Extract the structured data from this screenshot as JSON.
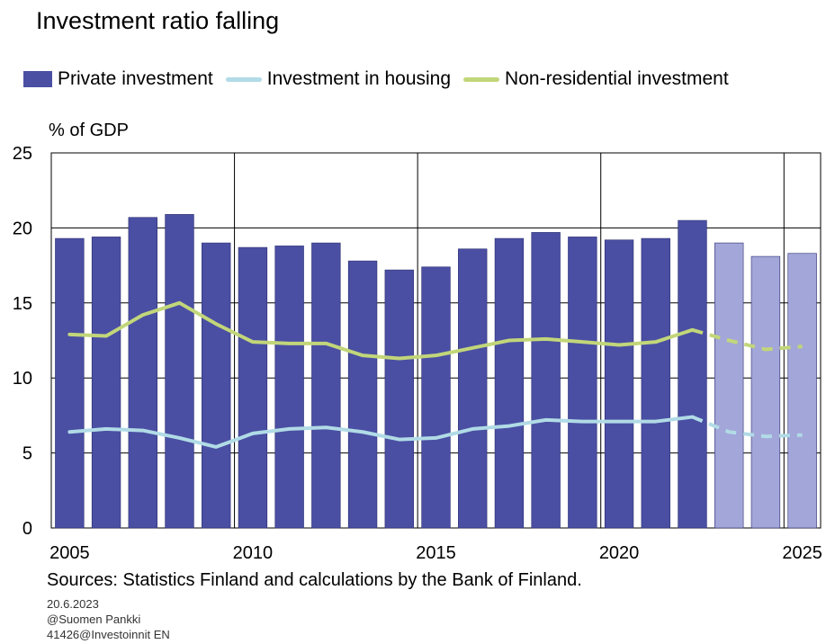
{
  "chart_data": {
    "type": "bar",
    "title": "Investment ratio falling",
    "ylabel": "% of GDP",
    "xlabel": "",
    "ylim": [
      0,
      25
    ],
    "y_ticks": [
      0,
      5,
      10,
      15,
      20,
      25
    ],
    "x_tick_labels": [
      "2005",
      "2010",
      "2015",
      "2020",
      "2025"
    ],
    "grid": true,
    "legend_position": "top",
    "x": [
      2005,
      2006,
      2007,
      2008,
      2009,
      2010,
      2011,
      2012,
      2013,
      2014,
      2015,
      2016,
      2017,
      2018,
      2019,
      2020,
      2021,
      2022,
      2023,
      2024,
      2025
    ],
    "forecast_from": 2023,
    "series": [
      {
        "name": "Private investment",
        "kind": "bar",
        "color": "#4a4fa3",
        "forecast_color": "#a3a6d8",
        "values": [
          19.3,
          19.4,
          20.7,
          20.9,
          19.0,
          18.7,
          18.8,
          19.0,
          17.8,
          17.2,
          17.4,
          18.6,
          19.3,
          19.7,
          19.4,
          19.2,
          19.3,
          20.5,
          19.0,
          18.1,
          18.3
        ]
      },
      {
        "name": "Investment in housing",
        "kind": "line",
        "color": "#b1dbe6",
        "values": [
          6.4,
          6.6,
          6.5,
          6.0,
          5.4,
          6.3,
          6.6,
          6.7,
          6.4,
          5.9,
          6.0,
          6.6,
          6.8,
          7.2,
          7.1,
          7.1,
          7.1,
          7.4,
          6.4,
          6.1,
          6.2
        ]
      },
      {
        "name": "Non-residential investment",
        "kind": "line",
        "color": "#c2d67a",
        "values": [
          12.9,
          12.8,
          14.2,
          15.0,
          13.6,
          12.4,
          12.3,
          12.3,
          11.5,
          11.3,
          11.5,
          12.0,
          12.5,
          12.6,
          12.4,
          12.2,
          12.4,
          13.2,
          12.5,
          11.9,
          12.1
        ]
      }
    ]
  },
  "footer": {
    "sources": "Sources: Statistics Finland and calculations by the Bank of Finland.",
    "date": "20.6.2023",
    "publisher": "@Suomen Pankki",
    "code": "41426@Investoinnit EN"
  }
}
